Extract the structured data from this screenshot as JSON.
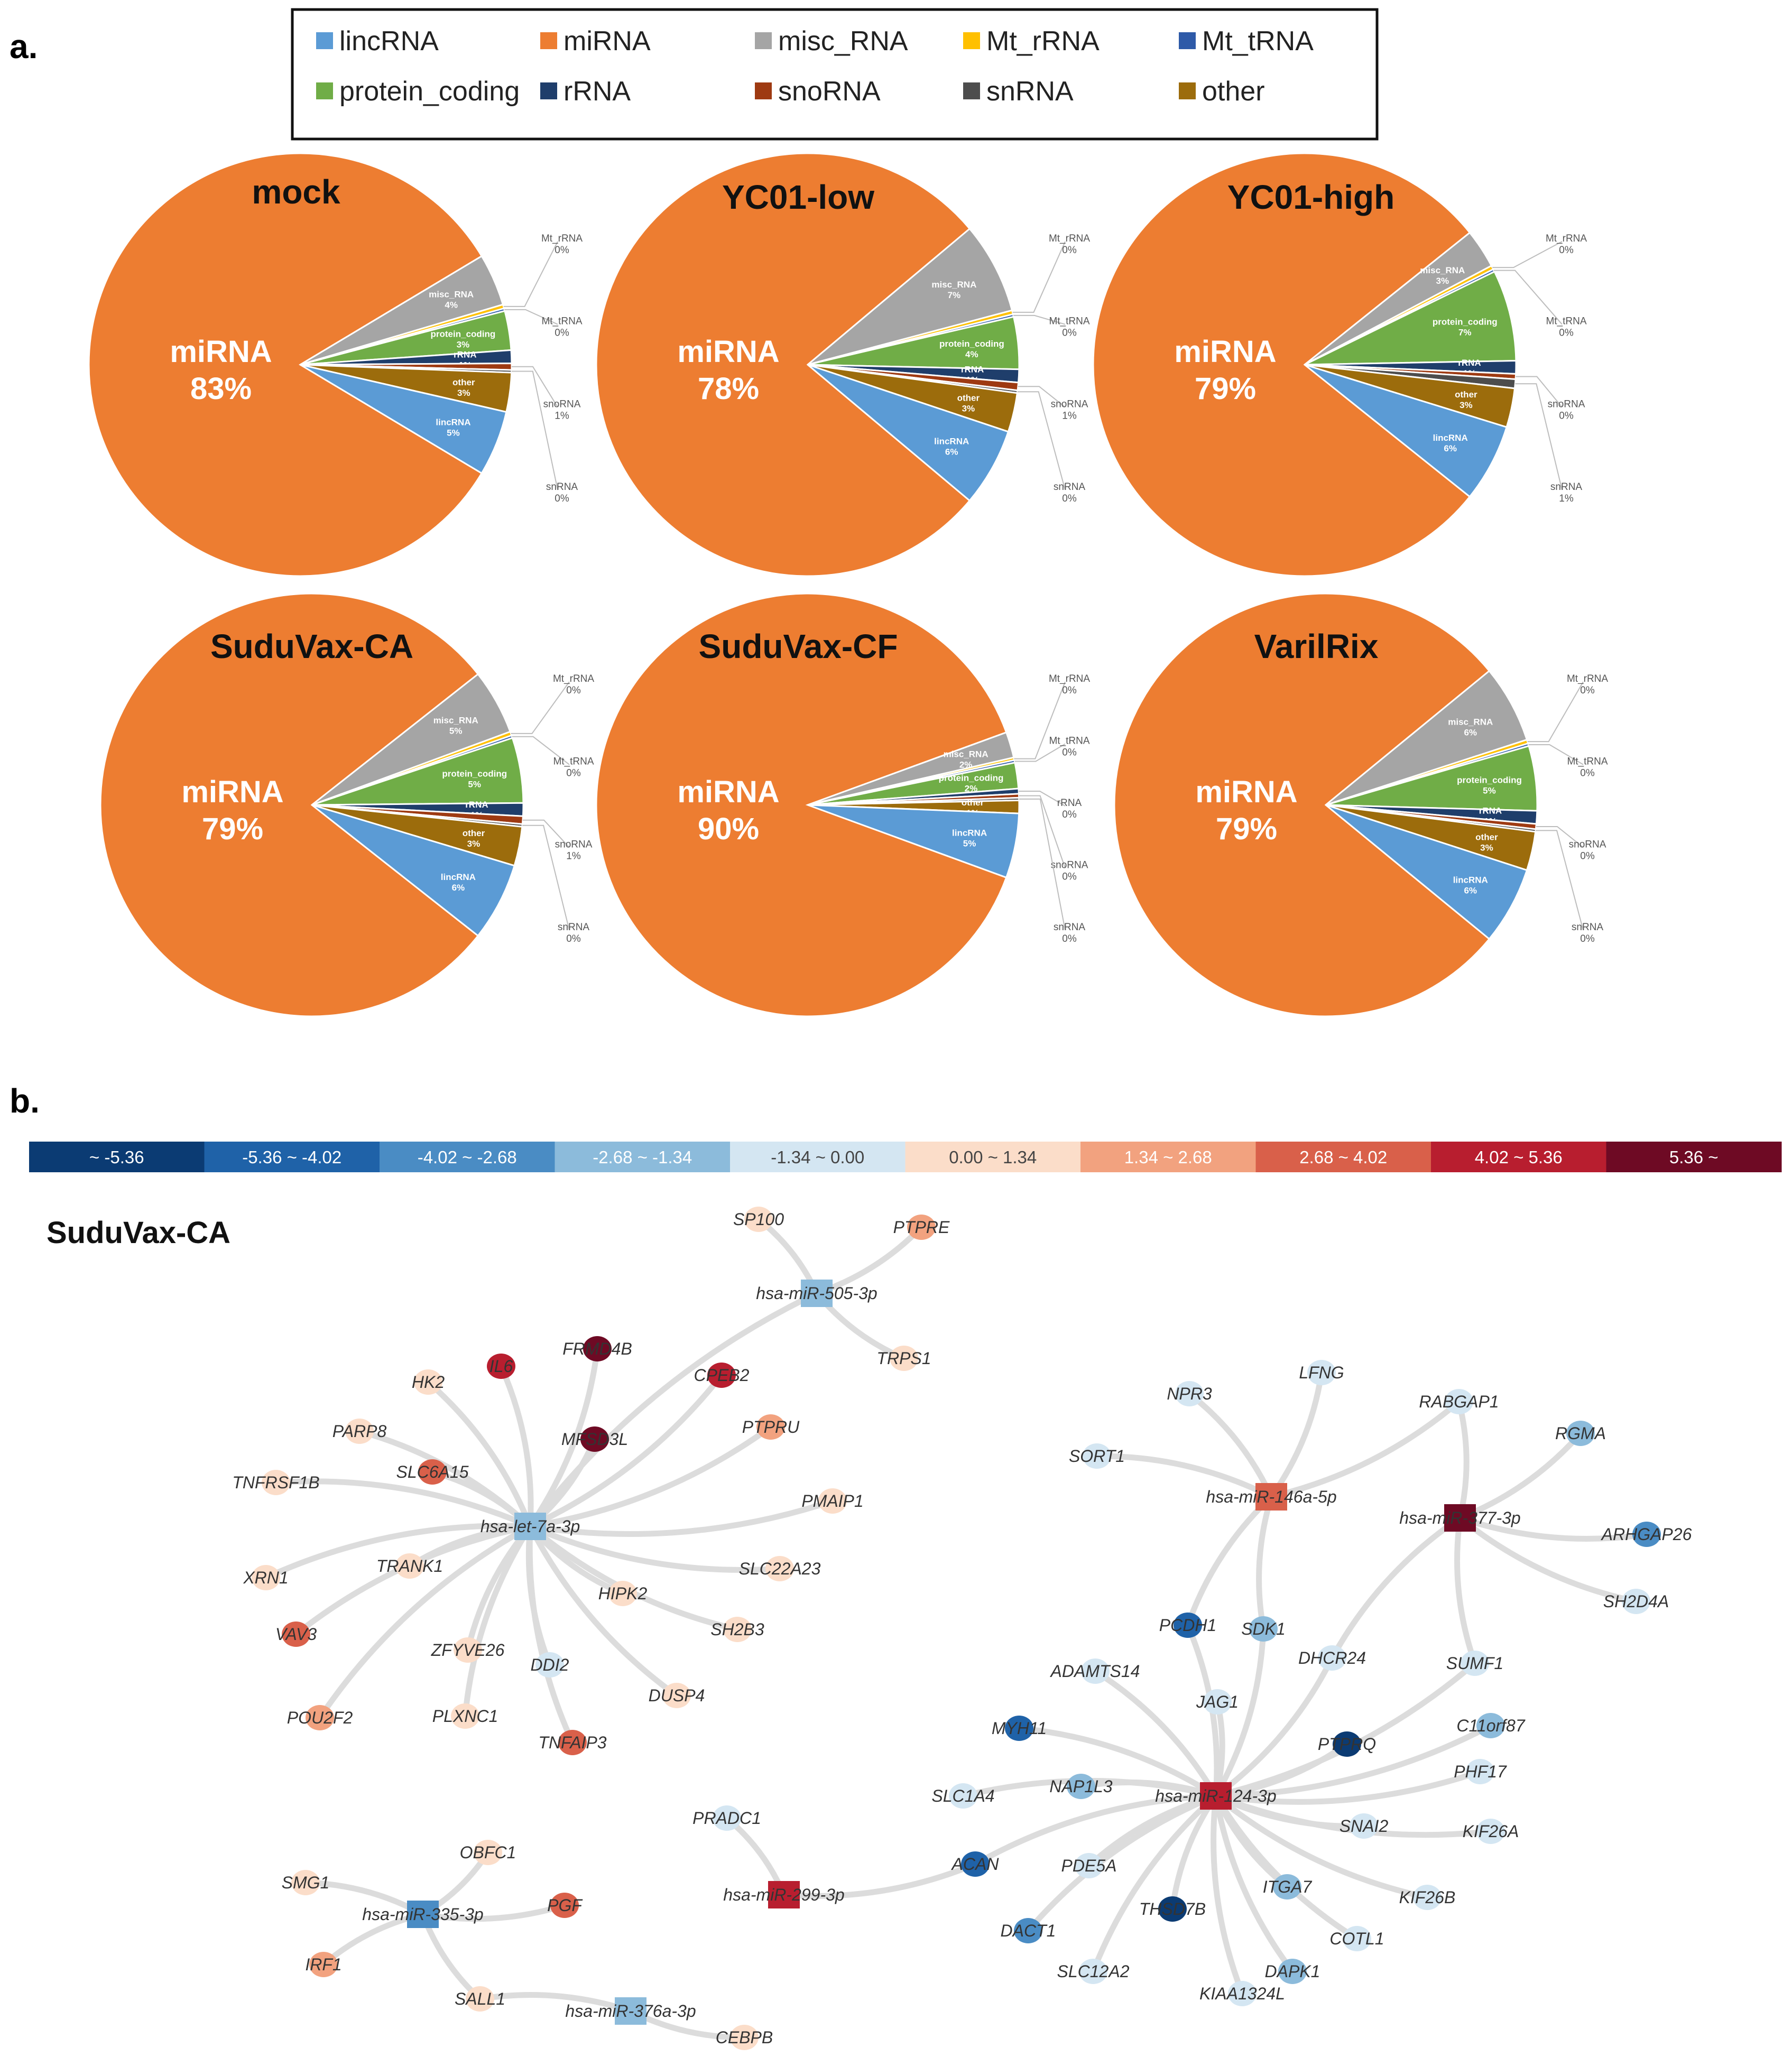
{
  "panel_a_label": "a.",
  "panel_b_label": "b.",
  "legend": [
    {
      "name": "lincRNA",
      "color": "#5b9bd5"
    },
    {
      "name": "miRNA",
      "color": "#ed7d31"
    },
    {
      "name": "misc_RNA",
      "color": "#a5a5a5"
    },
    {
      "name": "Mt_rRNA",
      "color": "#ffc000"
    },
    {
      "name": "Mt_tRNA",
      "color": "#2e5aa8"
    },
    {
      "name": "protein_coding",
      "color": "#70ad47"
    },
    {
      "name": "rRNA",
      "color": "#1f3e6b"
    },
    {
      "name": "snoRNA",
      "color": "#9e3a12"
    },
    {
      "name": "snRNA",
      "color": "#4d4d4d"
    },
    {
      "name": "other",
      "color": "#9c6c0c"
    }
  ],
  "chart_data": [
    {
      "type": "pie",
      "title": "mock",
      "main_label": "miRNA",
      "main_pct": "83%",
      "slices": [
        {
          "name": "miRNA",
          "value": 83,
          "label": "miRNA",
          "pct": "83%"
        },
        {
          "name": "misc_RNA",
          "value": 4,
          "label": "misc_RNA",
          "pct": "4%"
        },
        {
          "name": "Mt_rRNA",
          "value": 0.3,
          "label": "Mt_rRNA",
          "pct": "0%"
        },
        {
          "name": "Mt_tRNA",
          "value": 0.2,
          "label": "Mt_tRNA",
          "pct": "0%"
        },
        {
          "name": "protein_coding",
          "value": 3,
          "label": "protein_coding",
          "pct": "3%"
        },
        {
          "name": "rRNA",
          "value": 1,
          "label": "rRNA",
          "pct": "1%"
        },
        {
          "name": "snoRNA",
          "value": 0.5,
          "label": "snoRNA",
          "pct": "1%"
        },
        {
          "name": "snRNA",
          "value": 0.2,
          "label": "snRNA",
          "pct": "0%"
        },
        {
          "name": "other",
          "value": 3,
          "label": "other",
          "pct": "3%"
        },
        {
          "name": "lincRNA",
          "value": 5,
          "label": "lincRNA",
          "pct": "5%"
        }
      ]
    },
    {
      "type": "pie",
      "title": "YC01-low",
      "main_label": "miRNA",
      "main_pct": "78%",
      "slices": [
        {
          "name": "miRNA",
          "value": 78,
          "label": "miRNA",
          "pct": "78%"
        },
        {
          "name": "misc_RNA",
          "value": 7,
          "label": "misc_RNA",
          "pct": "7%"
        },
        {
          "name": "Mt_rRNA",
          "value": 0.3,
          "label": "Mt_rRNA",
          "pct": "0%"
        },
        {
          "name": "Mt_tRNA",
          "value": 0.2,
          "label": "Mt_tRNA",
          "pct": "0%"
        },
        {
          "name": "protein_coding",
          "value": 4,
          "label": "protein_coding",
          "pct": "4%"
        },
        {
          "name": "rRNA",
          "value": 1,
          "label": "rRNA",
          "pct": "1%"
        },
        {
          "name": "snoRNA",
          "value": 0.6,
          "label": "snoRNA",
          "pct": "1%"
        },
        {
          "name": "snRNA",
          "value": 0.2,
          "label": "snRNA",
          "pct": "0%"
        },
        {
          "name": "other",
          "value": 3,
          "label": "other",
          "pct": "3%"
        },
        {
          "name": "lincRNA",
          "value": 6,
          "label": "lincRNA",
          "pct": "6%"
        }
      ]
    },
    {
      "type": "pie",
      "title": "YC01-high",
      "main_label": "miRNA",
      "main_pct": "79%",
      "slices": [
        {
          "name": "miRNA",
          "value": 79,
          "label": "miRNA",
          "pct": "79%"
        },
        {
          "name": "misc_RNA",
          "value": 3,
          "label": "misc_RNA",
          "pct": "3%"
        },
        {
          "name": "Mt_rRNA",
          "value": 0.3,
          "label": "Mt_rRNA",
          "pct": "0%"
        },
        {
          "name": "Mt_tRNA",
          "value": 0.2,
          "label": "Mt_tRNA",
          "pct": "0%"
        },
        {
          "name": "protein_coding",
          "value": 7,
          "label": "protein_coding",
          "pct": "7%"
        },
        {
          "name": "rRNA",
          "value": 1,
          "label": "rRNA",
          "pct": "1%"
        },
        {
          "name": "snoRNA",
          "value": 0.4,
          "label": "snoRNA",
          "pct": "0%"
        },
        {
          "name": "snRNA",
          "value": 0.7,
          "label": "snRNA",
          "pct": "1%"
        },
        {
          "name": "other",
          "value": 3,
          "label": "other",
          "pct": "3%"
        },
        {
          "name": "lincRNA",
          "value": 6,
          "label": "lincRNA",
          "pct": "6%"
        }
      ]
    },
    {
      "type": "pie",
      "title": "SuduVax-CA",
      "main_label": "miRNA",
      "main_pct": "79%",
      "slices": [
        {
          "name": "miRNA",
          "value": 79,
          "label": "miRNA",
          "pct": "79%"
        },
        {
          "name": "misc_RNA",
          "value": 5,
          "label": "misc_RNA",
          "pct": "5%"
        },
        {
          "name": "Mt_rRNA",
          "value": 0.3,
          "label": "Mt_rRNA",
          "pct": "0%"
        },
        {
          "name": "Mt_tRNA",
          "value": 0.2,
          "label": "Mt_tRNA",
          "pct": "0%"
        },
        {
          "name": "protein_coding",
          "value": 5,
          "label": "protein_coding",
          "pct": "5%"
        },
        {
          "name": "rRNA",
          "value": 1,
          "label": "rRNA",
          "pct": "1%"
        },
        {
          "name": "snoRNA",
          "value": 0.6,
          "label": "snoRNA",
          "pct": "1%"
        },
        {
          "name": "snRNA",
          "value": 0.2,
          "label": "snRNA",
          "pct": "0%"
        },
        {
          "name": "other",
          "value": 3,
          "label": "other",
          "pct": "3%"
        },
        {
          "name": "lincRNA",
          "value": 6,
          "label": "lincRNA",
          "pct": "6%"
        }
      ]
    },
    {
      "type": "pie",
      "title": "SuduVax-CF",
      "main_label": "miRNA",
      "main_pct": "90%",
      "slices": [
        {
          "name": "miRNA",
          "value": 90,
          "label": "miRNA",
          "pct": "90%"
        },
        {
          "name": "misc_RNA",
          "value": 2,
          "label": "misc_RNA",
          "pct": "2%"
        },
        {
          "name": "Mt_rRNA",
          "value": 0.2,
          "label": "Mt_rRNA",
          "pct": "0%"
        },
        {
          "name": "Mt_tRNA",
          "value": 0.2,
          "label": "Mt_tRNA",
          "pct": "0%"
        },
        {
          "name": "protein_coding",
          "value": 2,
          "label": "protein_coding",
          "pct": "2%"
        },
        {
          "name": "rRNA",
          "value": 0.4,
          "label": "rRNA",
          "pct": "0%"
        },
        {
          "name": "snoRNA",
          "value": 0.3,
          "label": "snoRNA",
          "pct": "0%"
        },
        {
          "name": "snRNA",
          "value": 0.2,
          "label": "snRNA",
          "pct": "0%"
        },
        {
          "name": "other",
          "value": 1,
          "label": "other",
          "pct": "1%"
        },
        {
          "name": "lincRNA",
          "value": 5,
          "label": "lincRNA",
          "pct": "5%"
        }
      ]
    },
    {
      "type": "pie",
      "title": "VarilRix",
      "main_label": "miRNA",
      "main_pct": "79%",
      "slices": [
        {
          "name": "miRNA",
          "value": 79,
          "label": "miRNA",
          "pct": "79%"
        },
        {
          "name": "misc_RNA",
          "value": 6,
          "label": "misc_RNA",
          "pct": "6%"
        },
        {
          "name": "Mt_rRNA",
          "value": 0.3,
          "label": "Mt_rRNA",
          "pct": "0%"
        },
        {
          "name": "Mt_tRNA",
          "value": 0.2,
          "label": "Mt_tRNA",
          "pct": "0%"
        },
        {
          "name": "protein_coding",
          "value": 5,
          "label": "protein_coding",
          "pct": "5%"
        },
        {
          "name": "rRNA",
          "value": 1,
          "label": "rRNA",
          "pct": "1%"
        },
        {
          "name": "snoRNA",
          "value": 0.4,
          "label": "snoRNA",
          "pct": "0%"
        },
        {
          "name": "snRNA",
          "value": 0.2,
          "label": "snRNA",
          "pct": "0%"
        },
        {
          "name": "other",
          "value": 3,
          "label": "other",
          "pct": "3%"
        },
        {
          "name": "lincRNA",
          "value": 6,
          "label": "lincRNA",
          "pct": "6%"
        }
      ]
    }
  ],
  "colorbar": [
    {
      "label": "~ -5.36",
      "color": "#0b3b73"
    },
    {
      "label": "-5.36 ~ -4.02",
      "color": "#1f62a8"
    },
    {
      "label": "-4.02 ~ -2.68",
      "color": "#4a8cc4"
    },
    {
      "label": "-2.68 ~ -1.34",
      "color": "#8cbbdb"
    },
    {
      "label": "-1.34 ~ 0.00",
      "color": "#d4e6f2"
    },
    {
      "label": "0.00 ~ 1.34",
      "color": "#fbddc9"
    },
    {
      "label": "1.34 ~ 2.68",
      "color": "#f2a27f"
    },
    {
      "label": "2.68 ~ 4.02",
      "color": "#d9604a"
    },
    {
      "label": "4.02 ~ 5.36",
      "color": "#b81e2f"
    },
    {
      "label": "5.36 ~",
      "color": "#6e0a24"
    }
  ],
  "network": {
    "title": "SuduVax-CA",
    "mirnas": [
      {
        "name": "hsa-miR-505-3p",
        "level": "-2.68 ~ -1.34"
      },
      {
        "name": "hsa-let-7a-3p",
        "level": "-2.68 ~ -1.34"
      },
      {
        "name": "hsa-miR-146a-5p",
        "level": "2.68 ~ 4.02"
      },
      {
        "name": "hsa-miR-377-3p",
        "level": "5.36 ~"
      },
      {
        "name": "hsa-miR-124-3p",
        "level": "4.02 ~ 5.36"
      },
      {
        "name": "hsa-miR-299-3p",
        "level": "4.02 ~ 5.36"
      },
      {
        "name": "hsa-miR-335-3p",
        "level": "-4.02 ~ -2.68"
      },
      {
        "name": "hsa-miR-376a-3p",
        "level": "-2.68 ~ -1.34"
      }
    ],
    "genes": [
      {
        "name": "SP100",
        "level": "0.00 ~ 1.34"
      },
      {
        "name": "PTPRE",
        "level": "1.34 ~ 2.68"
      },
      {
        "name": "TRPS1",
        "level": "0.00 ~ 1.34"
      },
      {
        "name": "FRMD4B",
        "level": "5.36 ~"
      },
      {
        "name": "IL6",
        "level": "4.02 ~ 5.36"
      },
      {
        "name": "HK2",
        "level": "0.00 ~ 1.34"
      },
      {
        "name": "CPEB2",
        "level": "4.02 ~ 5.36"
      },
      {
        "name": "PARP8",
        "level": "0.00 ~ 1.34"
      },
      {
        "name": "MFSD3L",
        "level": "5.36 ~"
      },
      {
        "name": "PTPRU",
        "level": "1.34 ~ 2.68"
      },
      {
        "name": "TNFRSF1B",
        "level": "0.00 ~ 1.34"
      },
      {
        "name": "SLC6A15",
        "level": "2.68 ~ 4.02"
      },
      {
        "name": "PMAIP1",
        "level": "0.00 ~ 1.34"
      },
      {
        "name": "XRN1",
        "level": "0.00 ~ 1.34"
      },
      {
        "name": "TRANK1",
        "level": "0.00 ~ 1.34"
      },
      {
        "name": "SLC22A23",
        "level": "0.00 ~ 1.34"
      },
      {
        "name": "HIPK2",
        "level": "0.00 ~ 1.34"
      },
      {
        "name": "VAV3",
        "level": "2.68 ~ 4.02"
      },
      {
        "name": "SH2B3",
        "level": "0.00 ~ 1.34"
      },
      {
        "name": "ZFYVE26",
        "level": "0.00 ~ 1.34"
      },
      {
        "name": "DDI2",
        "level": "-1.34 ~ 0.00"
      },
      {
        "name": "DUSP4",
        "level": "0.00 ~ 1.34"
      },
      {
        "name": "POU2F2",
        "level": "1.34 ~ 2.68"
      },
      {
        "name": "PLXNC1",
        "level": "0.00 ~ 1.34"
      },
      {
        "name": "TNFAIP3",
        "level": "2.68 ~ 4.02"
      },
      {
        "name": "NPR3",
        "level": "-1.34 ~ 0.00"
      },
      {
        "name": "LFNG",
        "level": "-1.34 ~ 0.00"
      },
      {
        "name": "RABGAP1",
        "level": "-1.34 ~ 0.00"
      },
      {
        "name": "RGMA",
        "level": "-2.68 ~ -1.34"
      },
      {
        "name": "SORT1",
        "level": "-1.34 ~ 0.00"
      },
      {
        "name": "ARHGAP26",
        "level": "-4.02 ~ -2.68"
      },
      {
        "name": "SH2D4A",
        "level": "-1.34 ~ 0.00"
      },
      {
        "name": "PCDH1",
        "level": "-5.36 ~ -4.02"
      },
      {
        "name": "SDK1",
        "level": "-2.68 ~ -1.34"
      },
      {
        "name": "DHCR24",
        "level": "-1.34 ~ 0.00"
      },
      {
        "name": "ADAMTS14",
        "level": "-1.34 ~ 0.00"
      },
      {
        "name": "SUMF1",
        "level": "-1.34 ~ 0.00"
      },
      {
        "name": "JAG1",
        "level": "-1.34 ~ 0.00"
      },
      {
        "name": "C11orf87",
        "level": "-2.68 ~ -1.34"
      },
      {
        "name": "MYH11",
        "level": "-5.36 ~ -4.02"
      },
      {
        "name": "PTPRQ",
        "level": "~ -5.36"
      },
      {
        "name": "PHF17",
        "level": "-1.34 ~ 0.00"
      },
      {
        "name": "NAP1L3",
        "level": "-2.68 ~ -1.34"
      },
      {
        "name": "SLC1A4",
        "level": "-1.34 ~ 0.00"
      },
      {
        "name": "SNAI2",
        "level": "-1.34 ~ 0.00"
      },
      {
        "name": "KIF26A",
        "level": "-1.34 ~ 0.00"
      },
      {
        "name": "PRADC1",
        "level": "-1.34 ~ 0.00"
      },
      {
        "name": "ACAN",
        "level": "-5.36 ~ -4.02"
      },
      {
        "name": "PDE5A",
        "level": "-1.34 ~ 0.00"
      },
      {
        "name": "THSD7B",
        "level": "~ -5.36"
      },
      {
        "name": "ITGA7",
        "level": "-2.68 ~ -1.34"
      },
      {
        "name": "KIF26B",
        "level": "-1.34 ~ 0.00"
      },
      {
        "name": "DACT1",
        "level": "-4.02 ~ -2.68"
      },
      {
        "name": "COTL1",
        "level": "-1.34 ~ 0.00"
      },
      {
        "name": "SLC12A2",
        "level": "-1.34 ~ 0.00"
      },
      {
        "name": "DAPK1",
        "level": "-2.68 ~ -1.34"
      },
      {
        "name": "KIAA1324L",
        "level": "-1.34 ~ 0.00"
      },
      {
        "name": "OBFC1",
        "level": "0.00 ~ 1.34"
      },
      {
        "name": "SMG1",
        "level": "0.00 ~ 1.34"
      },
      {
        "name": "PGF",
        "level": "2.68 ~ 4.02"
      },
      {
        "name": "IRF1",
        "level": "1.34 ~ 2.68"
      },
      {
        "name": "SALL1",
        "level": "0.00 ~ 1.34"
      },
      {
        "name": "CEBPB",
        "level": "0.00 ~ 1.34"
      }
    ],
    "edges": [
      [
        "hsa-miR-505-3p",
        "SP100"
      ],
      [
        "hsa-miR-505-3p",
        "PTPRE"
      ],
      [
        "hsa-miR-505-3p",
        "TRPS1"
      ],
      [
        "hsa-miR-505-3p",
        "hsa-let-7a-3p"
      ],
      [
        "hsa-let-7a-3p",
        "FRMD4B"
      ],
      [
        "hsa-let-7a-3p",
        "IL6"
      ],
      [
        "hsa-let-7a-3p",
        "HK2"
      ],
      [
        "hsa-let-7a-3p",
        "CPEB2"
      ],
      [
        "hsa-let-7a-3p",
        "PARP8"
      ],
      [
        "hsa-let-7a-3p",
        "MFSD3L"
      ],
      [
        "hsa-let-7a-3p",
        "PTPRU"
      ],
      [
        "hsa-let-7a-3p",
        "TNFRSF1B"
      ],
      [
        "hsa-let-7a-3p",
        "SLC6A15"
      ],
      [
        "hsa-let-7a-3p",
        "PMAIP1"
      ],
      [
        "hsa-let-7a-3p",
        "XRN1"
      ],
      [
        "hsa-let-7a-3p",
        "TRANK1"
      ],
      [
        "hsa-let-7a-3p",
        "SLC22A23"
      ],
      [
        "hsa-let-7a-3p",
        "HIPK2"
      ],
      [
        "hsa-let-7a-3p",
        "VAV3"
      ],
      [
        "hsa-let-7a-3p",
        "SH2B3"
      ],
      [
        "hsa-let-7a-3p",
        "ZFYVE26"
      ],
      [
        "hsa-let-7a-3p",
        "DDI2"
      ],
      [
        "hsa-let-7a-3p",
        "DUSP4"
      ],
      [
        "hsa-let-7a-3p",
        "POU2F2"
      ],
      [
        "hsa-let-7a-3p",
        "PLXNC1"
      ],
      [
        "hsa-let-7a-3p",
        "TNFAIP3"
      ],
      [
        "hsa-miR-146a-5p",
        "NPR3"
      ],
      [
        "hsa-miR-146a-5p",
        "LFNG"
      ],
      [
        "hsa-miR-146a-5p",
        "SORT1"
      ],
      [
        "hsa-miR-146a-5p",
        "RABGAP1"
      ],
      [
        "hsa-miR-146a-5p",
        "PCDH1"
      ],
      [
        "hsa-miR-146a-5p",
        "SDK1"
      ],
      [
        "hsa-miR-377-3p",
        "RABGAP1"
      ],
      [
        "hsa-miR-377-3p",
        "RGMA"
      ],
      [
        "hsa-miR-377-3p",
        "ARHGAP26"
      ],
      [
        "hsa-miR-377-3p",
        "SH2D4A"
      ],
      [
        "hsa-miR-377-3p",
        "SUMF1"
      ],
      [
        "hsa-miR-377-3p",
        "DHCR24"
      ],
      [
        "hsa-miR-124-3p",
        "PCDH1"
      ],
      [
        "hsa-miR-124-3p",
        "SDK1"
      ],
      [
        "hsa-miR-124-3p",
        "DHCR24"
      ],
      [
        "hsa-miR-124-3p",
        "ADAMTS14"
      ],
      [
        "hsa-miR-124-3p",
        "SUMF1"
      ],
      [
        "hsa-miR-124-3p",
        "JAG1"
      ],
      [
        "hsa-miR-124-3p",
        "C11orf87"
      ],
      [
        "hsa-miR-124-3p",
        "MYH11"
      ],
      [
        "hsa-miR-124-3p",
        "PTPRQ"
      ],
      [
        "hsa-miR-124-3p",
        "PHF17"
      ],
      [
        "hsa-miR-124-3p",
        "NAP1L3"
      ],
      [
        "hsa-miR-124-3p",
        "SLC1A4"
      ],
      [
        "hsa-miR-124-3p",
        "SNAI2"
      ],
      [
        "hsa-miR-124-3p",
        "KIF26A"
      ],
      [
        "hsa-miR-124-3p",
        "ACAN"
      ],
      [
        "hsa-miR-124-3p",
        "PDE5A"
      ],
      [
        "hsa-miR-124-3p",
        "THSD7B"
      ],
      [
        "hsa-miR-124-3p",
        "ITGA7"
      ],
      [
        "hsa-miR-124-3p",
        "KIF26B"
      ],
      [
        "hsa-miR-124-3p",
        "DACT1"
      ],
      [
        "hsa-miR-124-3p",
        "COTL1"
      ],
      [
        "hsa-miR-124-3p",
        "SLC12A2"
      ],
      [
        "hsa-miR-124-3p",
        "DAPK1"
      ],
      [
        "hsa-miR-124-3p",
        "KIAA1324L"
      ],
      [
        "hsa-miR-299-3p",
        "PRADC1"
      ],
      [
        "hsa-miR-299-3p",
        "ACAN"
      ],
      [
        "hsa-miR-335-3p",
        "OBFC1"
      ],
      [
        "hsa-miR-335-3p",
        "SMG1"
      ],
      [
        "hsa-miR-335-3p",
        "PGF"
      ],
      [
        "hsa-miR-335-3p",
        "IRF1"
      ],
      [
        "hsa-miR-335-3p",
        "SALL1"
      ],
      [
        "hsa-miR-376a-3p",
        "SALL1"
      ],
      [
        "hsa-miR-376a-3p",
        "CEBPB"
      ]
    ]
  }
}
